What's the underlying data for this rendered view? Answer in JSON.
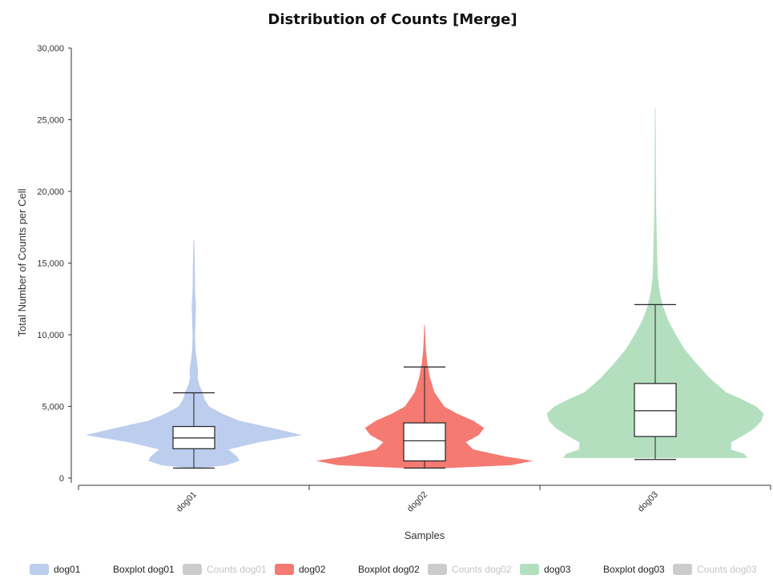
{
  "chart_data": {
    "type": "violin",
    "title": "Distribution of Counts [Merge]",
    "xlabel": "Samples",
    "ylabel": "Total Number of Counts per Cell",
    "ylim": [
      0,
      30000
    ],
    "yticks": [
      "0",
      "5,000",
      "10,000",
      "15,000",
      "20,000",
      "25,000",
      "30,000"
    ],
    "ytick_values": [
      0,
      5000,
      10000,
      15000,
      20000,
      25000,
      30000
    ],
    "categories": [
      "dog01",
      "dog02",
      "dog03"
    ],
    "series": [
      {
        "name": "dog01",
        "color": "#bccdee",
        "min": 700,
        "q1": 2050,
        "median": 2800,
        "q3": 3600,
        "whisker_low": 700,
        "whisker_high": 5950,
        "density": [
          [
            700,
            0.05
          ],
          [
            900,
            0.3
          ],
          [
            1200,
            0.42
          ],
          [
            1500,
            0.4
          ],
          [
            2000,
            0.32
          ],
          [
            2500,
            0.6
          ],
          [
            3000,
            1.0
          ],
          [
            3500,
            0.72
          ],
          [
            4000,
            0.42
          ],
          [
            4500,
            0.26
          ],
          [
            5000,
            0.14
          ],
          [
            5500,
            0.1
          ],
          [
            6000,
            0.08
          ],
          [
            6500,
            0.05
          ],
          [
            7000,
            0.035
          ],
          [
            7500,
            0.04
          ],
          [
            8000,
            0.03
          ],
          [
            9000,
            0.015
          ],
          [
            10000,
            0.012
          ],
          [
            12000,
            0.02
          ],
          [
            13000,
            0.012
          ],
          [
            15000,
            0.008
          ],
          [
            16600,
            0.004
          ]
        ]
      },
      {
        "name": "dog02",
        "color": "#f47a72",
        "min": 700,
        "q1": 1200,
        "median": 2600,
        "q3": 3850,
        "whisker_low": 700,
        "whisker_high": 7750,
        "density": [
          [
            700,
            0.2
          ],
          [
            900,
            0.8
          ],
          [
            1200,
            1.0
          ],
          [
            1500,
            0.75
          ],
          [
            2000,
            0.45
          ],
          [
            2500,
            0.38
          ],
          [
            3000,
            0.5
          ],
          [
            3500,
            0.55
          ],
          [
            4000,
            0.45
          ],
          [
            4500,
            0.3
          ],
          [
            5000,
            0.18
          ],
          [
            6000,
            0.09
          ],
          [
            7000,
            0.05
          ],
          [
            8000,
            0.025
          ],
          [
            9000,
            0.012
          ],
          [
            10000,
            0.006
          ],
          [
            10700,
            0.003
          ]
        ]
      },
      {
        "name": "dog03",
        "color": "#b3dfbf",
        "min": 1300,
        "q1": 2900,
        "median": 4700,
        "q3": 6600,
        "whisker_low": 1300,
        "whisker_high": 12100,
        "density": [
          [
            1400,
            0.85
          ],
          [
            1700,
            0.82
          ],
          [
            2000,
            0.7
          ],
          [
            2500,
            0.7
          ],
          [
            3000,
            0.82
          ],
          [
            3500,
            0.92
          ],
          [
            4000,
            0.98
          ],
          [
            4500,
            1.0
          ],
          [
            5000,
            0.93
          ],
          [
            5500,
            0.8
          ],
          [
            6000,
            0.65
          ],
          [
            7000,
            0.5
          ],
          [
            8000,
            0.38
          ],
          [
            9000,
            0.27
          ],
          [
            10000,
            0.19
          ],
          [
            11000,
            0.12
          ],
          [
            12000,
            0.07
          ],
          [
            13000,
            0.04
          ],
          [
            14000,
            0.025
          ],
          [
            15000,
            0.02
          ],
          [
            17000,
            0.013
          ],
          [
            19000,
            0.008
          ],
          [
            21000,
            0.006
          ],
          [
            23000,
            0.005
          ],
          [
            25800,
            0.003
          ]
        ]
      }
    ],
    "legend_position": "bottom",
    "legend": [
      {
        "label": "dog01",
        "color": "#bccdee",
        "active": true
      },
      {
        "label": "Boxplot dog01",
        "color": "",
        "active": true
      },
      {
        "label": "Counts dog01",
        "color": "#cccccc",
        "active": false
      },
      {
        "label": "dog02",
        "color": "#f47a72",
        "active": true
      },
      {
        "label": "Boxplot dog02",
        "color": "",
        "active": true
      },
      {
        "label": "Counts dog02",
        "color": "#cccccc",
        "active": false
      },
      {
        "label": "dog03",
        "color": "#b3dfbf",
        "active": true
      },
      {
        "label": "Boxplot dog03",
        "color": "",
        "active": true
      },
      {
        "label": "Counts dog03",
        "color": "#cccccc",
        "active": false
      }
    ]
  }
}
